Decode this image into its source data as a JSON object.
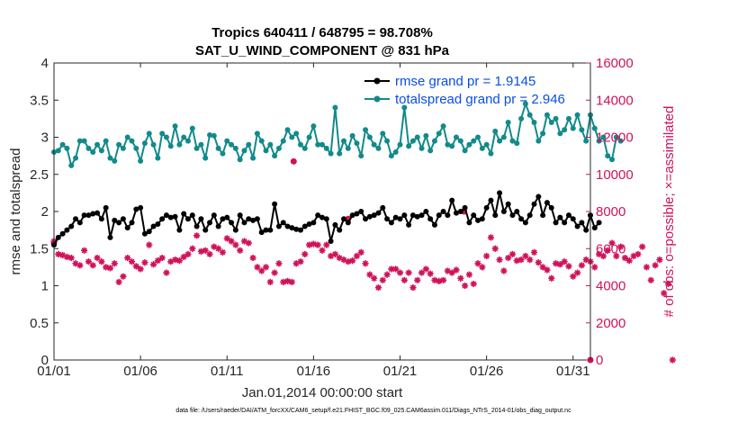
{
  "chart_data": {
    "type": "line",
    "title": "Tropics 640411 / 648795 = 98.708%",
    "subtitle": "SAT_U_WIND_COMPONENT @ 831 hPa",
    "xlabel": "Jan.01,2014 00:00:00 start",
    "ylabel_left": "rmse and totalspread",
    "ylabel_right": "# of obs: o=possible; ×=assimilated",
    "x_range": [
      1,
      32
    ],
    "ylim_left": [
      0,
      4
    ],
    "ylim_right": [
      0,
      16000
    ],
    "x_ticks": [
      {
        "value": 1,
        "label": "01/01"
      },
      {
        "value": 6,
        "label": "01/06"
      },
      {
        "value": 11,
        "label": "01/11"
      },
      {
        "value": 16,
        "label": "01/16"
      },
      {
        "value": 21,
        "label": "01/21"
      },
      {
        "value": 26,
        "label": "01/26"
      },
      {
        "value": 31,
        "label": "01/31"
      }
    ],
    "y_ticks_left": [
      "0",
      "0.5",
      "1",
      "1.5",
      "2",
      "2.5",
      "3",
      "3.5",
      "4"
    ],
    "y_ticks_right": [
      "0",
      "2000",
      "4000",
      "6000",
      "8000",
      "10000",
      "12000",
      "14000",
      "16000"
    ],
    "legend": [
      {
        "label": "rmse grand pr = 1.9145",
        "color": "#000000"
      },
      {
        "label": "totalspread grand pr = 2.946",
        "color": "#138a8a"
      }
    ],
    "x_step_days": 0.25,
    "series": [
      {
        "name": "rmse",
        "axis": "left",
        "color": "#000000",
        "values": [
          1.55,
          1.65,
          1.7,
          1.75,
          1.8,
          1.9,
          1.85,
          1.95,
          1.95,
          1.97,
          1.98,
          1.9,
          2.05,
          1.65,
          1.88,
          1.85,
          1.9,
          1.78,
          1.85,
          2.03,
          2.05,
          1.7,
          1.73,
          1.8,
          1.83,
          1.9,
          1.95,
          1.92,
          1.93,
          1.75,
          1.97,
          1.9,
          1.95,
          1.8,
          1.9,
          1.75,
          1.85,
          1.95,
          1.8,
          1.9,
          1.92,
          1.85,
          1.75,
          1.95,
          1.85,
          1.9,
          1.88,
          1.9,
          1.72,
          1.75,
          1.75,
          2.1,
          1.8,
          1.85,
          1.8,
          1.78,
          1.76,
          1.75,
          1.8,
          1.83,
          1.85,
          1.95,
          1.92,
          1.9,
          1.6,
          1.82,
          1.75,
          1.9,
          1.85,
          1.95,
          1.97,
          2.0,
          1.9,
          1.93,
          1.95,
          1.98,
          2.05,
          1.9,
          1.85,
          1.92,
          1.9,
          1.95,
          1.82,
          1.95,
          1.93,
          1.95,
          2.0,
          1.9,
          1.82,
          1.95,
          2.0,
          1.95,
          2.15,
          1.98,
          2.0,
          2.05,
          1.85,
          1.95,
          1.88,
          1.9,
          2.05,
          2.15,
          1.95,
          2.25,
          2.0,
          2.1,
          1.95,
          2.0,
          1.9,
          1.85,
          1.95,
          2.1,
          2.2,
          1.95,
          2.12,
          2.05,
          1.85,
          1.92,
          1.85,
          1.95,
          1.9,
          1.8,
          1.85,
          1.75,
          1.95,
          1.78,
          1.85
        ]
      },
      {
        "name": "totalspread",
        "axis": "left",
        "color": "#138a8a",
        "values": [
          2.8,
          2.82,
          2.9,
          2.85,
          2.62,
          2.72,
          2.95,
          2.95,
          2.85,
          2.8,
          2.9,
          2.82,
          2.95,
          2.72,
          2.68,
          2.9,
          2.85,
          3.0,
          2.95,
          2.85,
          2.68,
          2.92,
          3.05,
          2.9,
          2.72,
          3.05,
          3.0,
          2.88,
          3.15,
          2.9,
          3.0,
          2.95,
          3.12,
          2.85,
          2.9,
          2.72,
          3.03,
          3.02,
          2.85,
          2.78,
          2.95,
          2.9,
          2.85,
          2.7,
          2.82,
          2.9,
          2.72,
          3.05,
          2.95,
          2.82,
          2.9,
          2.75,
          2.85,
          2.95,
          3.1,
          3.0,
          3.05,
          2.9,
          2.85,
          3.0,
          3.15,
          2.9,
          2.9,
          2.85,
          2.78,
          3.4,
          2.78,
          2.95,
          2.85,
          3.02,
          2.92,
          2.75,
          3.1,
          3.0,
          2.9,
          2.85,
          3.05,
          2.95,
          2.75,
          2.8,
          2.9,
          3.4,
          2.88,
          2.95,
          3.0,
          2.85,
          3.02,
          2.82,
          2.95,
          3.05,
          3.15,
          2.9,
          2.88,
          3.0,
          2.95,
          2.82,
          2.9,
          2.95,
          3.0,
          2.85,
          2.9,
          2.78,
          3.08,
          2.95,
          3.0,
          3.2,
          2.95,
          2.92,
          3.25,
          3.45,
          3.3,
          3.2,
          2.95,
          3.05,
          3.3,
          3.2,
          3.25,
          3.05,
          3.1,
          3.25,
          3.12,
          3.3,
          3.1,
          2.95,
          3.3,
          3.12,
          2.95,
          3.0,
          2.75,
          2.7,
          3.0,
          2.95
        ]
      },
      {
        "name": "# of obs assimilated",
        "axis": "right",
        "color": "#d0125a",
        "values": [
          6400,
          5700,
          5650,
          5550,
          5500,
          5200,
          5100,
          5900,
          5300,
          5100,
          5500,
          5300,
          5000,
          4950,
          5200,
          4200,
          4500,
          5500,
          5300,
          5050,
          4900,
          5250,
          6200,
          5150,
          5350,
          5500,
          4700,
          5300,
          5400,
          5350,
          5550,
          5700,
          6000,
          6700,
          5850,
          5900,
          5700,
          6100,
          6000,
          5800,
          6550,
          6400,
          6200,
          5900,
          6400,
          6300,
          5500,
          5000,
          4800,
          5000,
          4200,
          4700,
          5200,
          4200,
          4250,
          4200,
          5200,
          5300,
          5700,
          6200,
          6250,
          6200,
          5900,
          6200,
          5600,
          5700,
          5500,
          5400,
          5300,
          5350,
          5600,
          5800,
          5200,
          4600,
          4400,
          3900,
          4300,
          4600,
          4900,
          4900,
          4700,
          4300,
          4700,
          3900,
          4300,
          4700,
          4900,
          4650,
          4300,
          4250,
          4300,
          4800,
          4700,
          4850,
          4400,
          4000,
          4600,
          4100,
          5200,
          5000,
          5600,
          6600,
          6000,
          5400,
          4800,
          5500,
          5700,
          5350,
          5400,
          5600,
          5400,
          5800,
          5250,
          5000,
          4850,
          4400,
          5200,
          5150,
          5300,
          5050,
          4500,
          4700,
          5100,
          5400,
          5300,
          5000,
          5700,
          5600,
          5900,
          6300,
          5600,
          6100,
          5500,
          5350,
          5600,
          5700,
          6100,
          5000,
          4300,
          5100,
          5400,
          3600,
          4100,
          0
        ]
      }
    ],
    "possible_markers": [
      {
        "x": 1.0,
        "value": 6300
      },
      {
        "x": 14.85,
        "value": 10700
      },
      {
        "x": 18.0,
        "value": 7600
      },
      {
        "x": 24.7,
        "value": 8000
      },
      {
        "x": 32.0,
        "value": 0
      }
    ]
  },
  "footer": {
    "data_file": "data file: /Users/raeder/DAI/ATM_forcXX/CAM6_setup/f.e21.FHIST_BGC.f09_025.CAM6assim.011/Diags_NTrS_2014-01/obs_diag_output.nc"
  }
}
